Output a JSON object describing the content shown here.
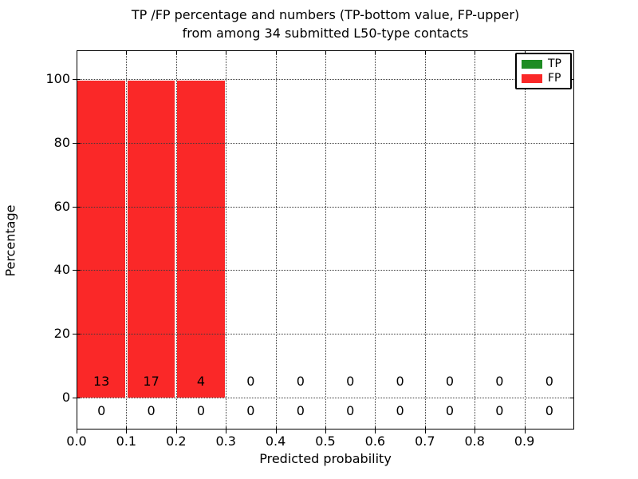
{
  "figure": {
    "title_line1": "TP /FP percentage and numbers (TP-bottom value, FP-upper)",
    "title_line2": "from among 34 submitted L50-type contacts",
    "xlabel": "Predicted probability",
    "ylabel": "Percentage"
  },
  "legend": {
    "items": [
      {
        "label": "TP",
        "color": "#1e8c23"
      },
      {
        "label": "FP",
        "color": "#fa2828"
      }
    ]
  },
  "chart_data": {
    "type": "bar",
    "stacked": true,
    "title": "TP /FP percentage and numbers (TP-bottom value, FP-upper) from among 34 submitted L50-type contacts",
    "xlabel": "Predicted probability",
    "ylabel": "Percentage",
    "bin_edges": [
      0.0,
      0.1,
      0.2,
      0.3,
      0.4,
      0.5,
      0.6,
      0.7,
      0.8,
      0.9,
      1.0
    ],
    "x_tick_labels": [
      "0.0",
      "0.1",
      "0.2",
      "0.3",
      "0.4",
      "0.5",
      "0.6",
      "0.7",
      "0.8",
      "0.9"
    ],
    "y_ticks": [
      0,
      20,
      40,
      60,
      80,
      100
    ],
    "ylim": [
      -10,
      109
    ],
    "xlim": [
      0.0,
      1.0
    ],
    "grid": true,
    "grid_style": "dotted",
    "legend_position": "upper right",
    "series": [
      {
        "name": "TP",
        "color": "#1e8c23",
        "percent": [
          0,
          0,
          0,
          0,
          0,
          0,
          0,
          0,
          0,
          0
        ],
        "counts": [
          0,
          0,
          0,
          0,
          0,
          0,
          0,
          0,
          0,
          0
        ]
      },
      {
        "name": "FP",
        "color": "#fa2828",
        "percent": [
          100,
          100,
          100,
          0,
          0,
          0,
          0,
          0,
          0,
          0
        ],
        "counts": [
          13,
          17,
          4,
          0,
          0,
          0,
          0,
          0,
          0,
          0
        ]
      }
    ],
    "total_counts_note": 34
  }
}
